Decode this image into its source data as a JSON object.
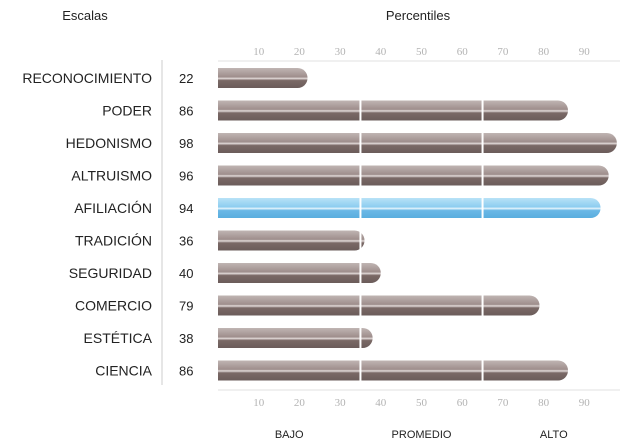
{
  "headers": {
    "scales": "Escalas",
    "percentiles": "Percentiles"
  },
  "chart_data": {
    "type": "bar",
    "orientation": "horizontal",
    "categories": [
      "RECONOCIMIENTO",
      "PODER",
      "HEDONISMO",
      "ALTRUISMO",
      "AFILIACIÓN",
      "TRADICIÓN",
      "SEGURIDAD",
      "COMERCIO",
      "ESTÉTICA",
      "CIENCIA"
    ],
    "values": [
      22,
      86,
      98,
      96,
      94,
      36,
      40,
      79,
      38,
      86
    ],
    "highlight": "AFILIACIÓN",
    "xlim": [
      0,
      100
    ],
    "ticks": [
      10,
      20,
      30,
      40,
      50,
      60,
      70,
      80,
      90
    ],
    "zone_dividers": [
      35,
      65
    ],
    "zones": [
      "BAJO",
      "PROMEDIO",
      "ALTO"
    ],
    "colors": {
      "bar": "#8c7a78",
      "bar_highlight": "#7cc4ec",
      "divider": "#ffffff",
      "tick": "#b3b3b3",
      "axis": "#cccccc"
    }
  }
}
